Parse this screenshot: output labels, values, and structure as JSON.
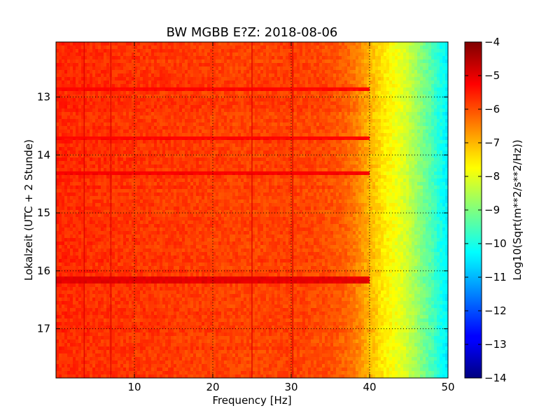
{
  "chart_data": {
    "type": "heatmap",
    "title": "BW MGBB E?Z: 2018-08-06",
    "xlabel": "Frequency [Hz]",
    "ylabel": "Lokalzeit (UTC + 2 Stunde)",
    "colorbar_label": "Log10(Sqrt(m**2/s**2/Hz))",
    "x_range": [
      0,
      50
    ],
    "y_range": [
      12.05,
      17.85
    ],
    "y_inverted": true,
    "x_ticks": [
      10,
      20,
      30,
      40,
      50
    ],
    "x_tick_labels": [
      "10",
      "20",
      "30",
      "40",
      "50"
    ],
    "y_ticks": [
      13,
      14,
      15,
      16,
      17
    ],
    "y_tick_labels": [
      "13",
      "14",
      "15",
      "16",
      "17"
    ],
    "color_range": [
      -14,
      -4
    ],
    "colorbar_ticks": [
      -4,
      -5,
      -6,
      -7,
      -8,
      -9,
      -10,
      -11,
      -12,
      -13,
      -14
    ],
    "colorbar_tick_labels": [
      "−4",
      "−5",
      "−6",
      "−7",
      "−8",
      "−9",
      "−10",
      "−11",
      "−12",
      "−13",
      "−14"
    ],
    "colormap": "jet",
    "grid": true,
    "spectrum_profile": {
      "frequency_hz": [
        0,
        5,
        10,
        15,
        20,
        25,
        30,
        35,
        37,
        38,
        39,
        40,
        41,
        42,
        43,
        44,
        45,
        46,
        47,
        48,
        49,
        50
      ],
      "log10_amplitude": [
        -5.6,
        -5.7,
        -5.75,
        -5.8,
        -5.85,
        -5.9,
        -5.85,
        -6.0,
        -6.2,
        -6.4,
        -6.7,
        -7.0,
        -7.3,
        -7.6,
        -7.8,
        -8.0,
        -8.3,
        -8.7,
        -9.1,
        -9.5,
        -10.0,
        -10.4
      ]
    },
    "vertical_lines_hz": [
      3.6,
      7.0,
      25.0,
      30.2
    ],
    "horizontal_events": [
      {
        "time": 16.15,
        "log10_amplitude": -5.0
      },
      {
        "time": 12.85,
        "log10_amplitude": -5.3
      },
      {
        "time": 13.7,
        "log10_amplitude": -5.3
      },
      {
        "time": 14.3,
        "log10_amplitude": -5.2
      }
    ]
  }
}
